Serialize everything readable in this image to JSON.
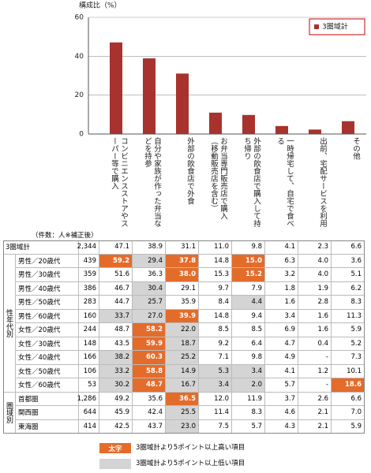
{
  "chart_data": {
    "type": "bar",
    "ylabel": "構成比（%）",
    "categories": [
      "コンビニエンスストアやスーパー等で購入",
      "自分や家族が作った弁当などを持参",
      "外部の飲食店で外食",
      "お弁当専門販売店で購入（移動販売店を含む）",
      "外部の飲食店で購入して持ち帰り",
      "一時帰宅して、自宅で食べる",
      "出前、宅配サービスを利用",
      "その他"
    ],
    "series": [
      {
        "name": "3圏域計",
        "color": "#a8322d",
        "values": [
          47.1,
          38.9,
          31.1,
          11.0,
          9.8,
          4.1,
          2.3,
          6.6
        ]
      }
    ],
    "ylim": [
      0,
      60
    ],
    "yticks": [
      0,
      20,
      40,
      60
    ],
    "grid": true,
    "legend": "top-right"
  },
  "table": {
    "note": "（件数：人※補正後）",
    "total": {
      "label": "3圏域計",
      "count": "2,344",
      "values": [
        "47.1",
        "38.9",
        "31.1",
        "11.0",
        "9.8",
        "4.1",
        "2.3",
        "6.6"
      ],
      "styles": [
        null,
        null,
        null,
        null,
        null,
        null,
        null,
        null
      ]
    },
    "groups": [
      {
        "label": "性年代別",
        "rows": [
          {
            "label": "男性／20歳代",
            "count": "439",
            "values": [
              "59.2",
              "29.4",
              "37.8",
              "14.8",
              "15.0",
              "6.3",
              "4.0",
              "3.6"
            ],
            "styles": [
              "high",
              "low",
              "high",
              null,
              "high",
              null,
              null,
              null
            ]
          },
          {
            "label": "男性／30歳代",
            "count": "359",
            "values": [
              "51.6",
              "36.3",
              "38.0",
              "15.3",
              "15.2",
              "3.2",
              "4.0",
              "5.1"
            ],
            "styles": [
              null,
              null,
              "high",
              null,
              "high",
              null,
              null,
              null
            ]
          },
          {
            "label": "男性／40歳代",
            "count": "386",
            "values": [
              "46.7",
              "30.4",
              "29.1",
              "9.7",
              "7.9",
              "1.8",
              "1.9",
              "6.2"
            ],
            "styles": [
              null,
              "low",
              null,
              null,
              null,
              null,
              null,
              null
            ]
          },
          {
            "label": "男性／50歳代",
            "count": "283",
            "values": [
              "44.7",
              "25.7",
              "35.9",
              "8.4",
              "4.4",
              "1.6",
              "2.8",
              "8.3"
            ],
            "styles": [
              null,
              "low",
              null,
              null,
              "low",
              null,
              null,
              null
            ]
          },
          {
            "label": "男性／60歳代",
            "count": "160",
            "values": [
              "33.7",
              "27.0",
              "39.9",
              "14.8",
              "9.4",
              "3.4",
              "1.6",
              "11.3"
            ],
            "styles": [
              "low",
              "low",
              "high",
              null,
              null,
              null,
              null,
              null
            ]
          },
          {
            "label": "女性／20歳代",
            "count": "244",
            "values": [
              "48.7",
              "58.2",
              "22.0",
              "8.5",
              "8.5",
              "6.9",
              "1.6",
              "5.9"
            ],
            "styles": [
              null,
              "high",
              "low",
              null,
              null,
              null,
              null,
              null
            ]
          },
          {
            "label": "女性／30歳代",
            "count": "148",
            "values": [
              "43.5",
              "59.9",
              "18.7",
              "9.2",
              "6.4",
              "4.7",
              "0.4",
              "5.2"
            ],
            "styles": [
              null,
              "high",
              "low",
              null,
              null,
              null,
              null,
              null
            ]
          },
          {
            "label": "女性／40歳代",
            "count": "166",
            "values": [
              "38.2",
              "60.3",
              "25.2",
              "7.1",
              "9.8",
              "4.9",
              "-",
              "7.3"
            ],
            "styles": [
              "low",
              "high",
              "low",
              null,
              null,
              null,
              null,
              null
            ]
          },
          {
            "label": "女性／50歳代",
            "count": "106",
            "values": [
              "33.2",
              "58.8",
              "14.9",
              "5.3",
              "3.4",
              "4.1",
              "1.2",
              "10.1"
            ],
            "styles": [
              "low",
              "high",
              "low",
              "low",
              "low",
              null,
              null,
              null
            ]
          },
          {
            "label": "女性／60歳代",
            "count": "53",
            "values": [
              "30.2",
              "48.7",
              "16.7",
              "3.4",
              "2.0",
              "5.7",
              "-",
              "18.6"
            ],
            "styles": [
              "low",
              "high",
              "low",
              "low",
              "low",
              null,
              null,
              "high"
            ]
          }
        ]
      },
      {
        "label": "圏域別",
        "rows": [
          {
            "label": "首都圏",
            "count": "1,286",
            "values": [
              "49.2",
              "35.6",
              "36.5",
              "12.0",
              "11.9",
              "3.7",
              "2.6",
              "6.6"
            ],
            "styles": [
              null,
              null,
              "high",
              null,
              null,
              null,
              null,
              null
            ]
          },
          {
            "label": "関西圏",
            "count": "644",
            "values": [
              "45.9",
              "42.4",
              "25.5",
              "11.4",
              "8.3",
              "4.6",
              "2.1",
              "7.0"
            ],
            "styles": [
              null,
              null,
              "low",
              null,
              null,
              null,
              null,
              null
            ]
          },
          {
            "label": "東海圏",
            "count": "414",
            "values": [
              "42.5",
              "43.7",
              "23.0",
              "7.5",
              "5.7",
              "4.3",
              "2.1",
              "5.9"
            ],
            "styles": [
              null,
              null,
              "low",
              null,
              null,
              null,
              null,
              null
            ]
          }
        ]
      }
    ]
  },
  "legend_notes": [
    {
      "sample": "太字",
      "style": "high",
      "text": "3圏域計より5ポイント以上高い項目"
    },
    {
      "style": "low",
      "text": "3圏域計より5ポイント以上低い項目"
    }
  ]
}
